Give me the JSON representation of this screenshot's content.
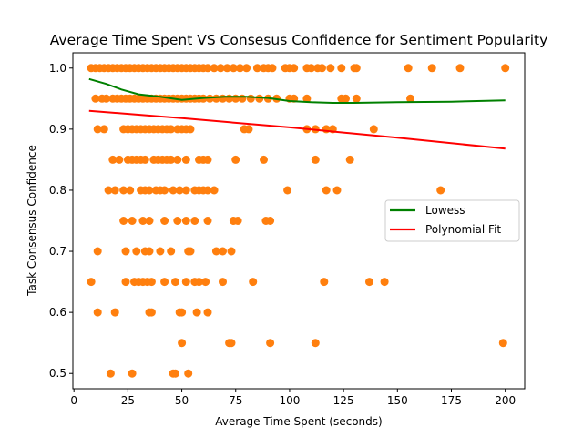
{
  "chart_data": {
    "type": "scatter",
    "title": "Average Time Spent VS Consesus Confidence for Sentiment Popularity",
    "xlabel": "Average Time Spent (seconds)",
    "ylabel": "Task Consensus Confidence",
    "xlim": [
      -0.5,
      209
    ],
    "ylim": [
      0.475,
      1.025
    ],
    "xticks": [
      0,
      25,
      50,
      75,
      100,
      125,
      150,
      175,
      200
    ],
    "yticks": [
      0.5,
      0.6,
      0.7,
      0.8,
      0.9,
      1.0
    ],
    "xtick_labels": [
      "0",
      "25",
      "50",
      "75",
      "100",
      "125",
      "150",
      "175",
      "200"
    ],
    "ytick_labels": [
      "0.5",
      "0.6",
      "0.7",
      "0.8",
      "0.9",
      "1.0"
    ],
    "grid": false,
    "legend_position": "center-right",
    "scatter_color": "#ff7f0e",
    "series": [
      {
        "kind": "scatter",
        "points": [
          [
            8,
            1.0
          ],
          [
            10,
            1.0
          ],
          [
            12,
            1.0
          ],
          [
            14,
            1.0
          ],
          [
            16,
            1.0
          ],
          [
            18,
            1.0
          ],
          [
            20,
            1.0
          ],
          [
            22,
            1.0
          ],
          [
            24,
            1.0
          ],
          [
            26,
            1.0
          ],
          [
            28,
            1.0
          ],
          [
            30,
            1.0
          ],
          [
            32,
            1.0
          ],
          [
            34,
            1.0
          ],
          [
            36,
            1.0
          ],
          [
            38,
            1.0
          ],
          [
            40,
            1.0
          ],
          [
            42,
            1.0
          ],
          [
            44,
            1.0
          ],
          [
            46,
            1.0
          ],
          [
            48,
            1.0
          ],
          [
            50,
            1.0
          ],
          [
            52,
            1.0
          ],
          [
            54,
            1.0
          ],
          [
            56,
            1.0
          ],
          [
            58,
            1.0
          ],
          [
            60,
            1.0
          ],
          [
            62,
            1.0
          ],
          [
            65,
            1.0
          ],
          [
            68,
            1.0
          ],
          [
            71,
            1.0
          ],
          [
            74,
            1.0
          ],
          [
            77,
            1.0
          ],
          [
            80,
            1.0
          ],
          [
            85,
            1.0
          ],
          [
            88,
            1.0
          ],
          [
            90,
            1.0
          ],
          [
            92,
            1.0
          ],
          [
            98,
            1.0
          ],
          [
            100,
            1.0
          ],
          [
            102,
            1.0
          ],
          [
            108,
            1.0
          ],
          [
            110,
            1.0
          ],
          [
            113,
            1.0
          ],
          [
            115,
            1.0
          ],
          [
            119,
            1.0
          ],
          [
            124,
            1.0
          ],
          [
            130,
            1.0
          ],
          [
            131,
            1.0
          ],
          [
            155,
            1.0
          ],
          [
            166,
            1.0
          ],
          [
            179,
            1.0
          ],
          [
            200,
            1.0
          ],
          [
            10,
            0.95
          ],
          [
            13,
            0.95
          ],
          [
            15,
            0.95
          ],
          [
            18,
            0.95
          ],
          [
            20,
            0.95
          ],
          [
            22,
            0.95
          ],
          [
            24,
            0.95
          ],
          [
            26,
            0.95
          ],
          [
            28,
            0.95
          ],
          [
            30,
            0.95
          ],
          [
            32,
            0.95
          ],
          [
            34,
            0.95
          ],
          [
            36,
            0.95
          ],
          [
            38,
            0.95
          ],
          [
            40,
            0.95
          ],
          [
            42,
            0.95
          ],
          [
            44,
            0.95
          ],
          [
            46,
            0.95
          ],
          [
            48,
            0.95
          ],
          [
            50,
            0.95
          ],
          [
            52,
            0.95
          ],
          [
            54,
            0.95
          ],
          [
            56,
            0.95
          ],
          [
            58,
            0.95
          ],
          [
            60,
            0.95
          ],
          [
            63,
            0.95
          ],
          [
            66,
            0.95
          ],
          [
            69,
            0.95
          ],
          [
            72,
            0.95
          ],
          [
            75,
            0.95
          ],
          [
            78,
            0.95
          ],
          [
            82,
            0.95
          ],
          [
            86,
            0.95
          ],
          [
            90,
            0.95
          ],
          [
            94,
            0.95
          ],
          [
            100,
            0.95
          ],
          [
            102,
            0.95
          ],
          [
            108,
            0.95
          ],
          [
            124,
            0.95
          ],
          [
            126,
            0.95
          ],
          [
            131,
            0.95
          ],
          [
            156,
            0.95
          ],
          [
            11,
            0.9
          ],
          [
            14,
            0.9
          ],
          [
            23,
            0.9
          ],
          [
            25,
            0.9
          ],
          [
            27,
            0.9
          ],
          [
            29,
            0.9
          ],
          [
            31,
            0.9
          ],
          [
            33,
            0.9
          ],
          [
            35,
            0.9
          ],
          [
            37,
            0.9
          ],
          [
            39,
            0.9
          ],
          [
            41,
            0.9
          ],
          [
            43,
            0.9
          ],
          [
            45,
            0.9
          ],
          [
            48,
            0.9
          ],
          [
            50,
            0.9
          ],
          [
            52,
            0.9
          ],
          [
            54,
            0.9
          ],
          [
            79,
            0.9
          ],
          [
            81,
            0.9
          ],
          [
            108,
            0.9
          ],
          [
            112,
            0.9
          ],
          [
            117,
            0.9
          ],
          [
            120,
            0.9
          ],
          [
            139,
            0.9
          ],
          [
            18,
            0.85
          ],
          [
            21,
            0.85
          ],
          [
            25,
            0.85
          ],
          [
            27,
            0.85
          ],
          [
            29,
            0.85
          ],
          [
            31,
            0.85
          ],
          [
            33,
            0.85
          ],
          [
            37,
            0.85
          ],
          [
            39,
            0.85
          ],
          [
            41,
            0.85
          ],
          [
            43,
            0.85
          ],
          [
            45,
            0.85
          ],
          [
            48,
            0.85
          ],
          [
            52,
            0.85
          ],
          [
            58,
            0.85
          ],
          [
            60,
            0.85
          ],
          [
            62,
            0.85
          ],
          [
            75,
            0.85
          ],
          [
            88,
            0.85
          ],
          [
            112,
            0.85
          ],
          [
            128,
            0.85
          ],
          [
            16,
            0.8
          ],
          [
            19,
            0.8
          ],
          [
            23,
            0.8
          ],
          [
            26,
            0.8
          ],
          [
            31,
            0.8
          ],
          [
            33,
            0.8
          ],
          [
            35,
            0.8
          ],
          [
            38,
            0.8
          ],
          [
            40,
            0.8
          ],
          [
            42,
            0.8
          ],
          [
            46,
            0.8
          ],
          [
            49,
            0.8
          ],
          [
            52,
            0.8
          ],
          [
            56,
            0.8
          ],
          [
            58,
            0.8
          ],
          [
            60,
            0.8
          ],
          [
            62,
            0.8
          ],
          [
            65,
            0.8
          ],
          [
            99,
            0.8
          ],
          [
            117,
            0.8
          ],
          [
            122,
            0.8
          ],
          [
            170,
            0.8
          ],
          [
            23,
            0.75
          ],
          [
            27,
            0.75
          ],
          [
            32,
            0.75
          ],
          [
            35,
            0.75
          ],
          [
            42,
            0.75
          ],
          [
            48,
            0.75
          ],
          [
            52,
            0.75
          ],
          [
            56,
            0.75
          ],
          [
            62,
            0.75
          ],
          [
            74,
            0.75
          ],
          [
            76,
            0.75
          ],
          [
            89,
            0.75
          ],
          [
            91,
            0.75
          ],
          [
            11,
            0.7
          ],
          [
            24,
            0.7
          ],
          [
            29,
            0.7
          ],
          [
            33,
            0.7
          ],
          [
            35,
            0.7
          ],
          [
            40,
            0.7
          ],
          [
            45,
            0.7
          ],
          [
            53,
            0.7
          ],
          [
            54,
            0.7
          ],
          [
            66,
            0.7
          ],
          [
            69,
            0.7
          ],
          [
            73,
            0.7
          ],
          [
            8,
            0.65
          ],
          [
            24,
            0.65
          ],
          [
            28,
            0.65
          ],
          [
            30,
            0.65
          ],
          [
            32,
            0.65
          ],
          [
            34,
            0.65
          ],
          [
            36,
            0.65
          ],
          [
            42,
            0.65
          ],
          [
            47,
            0.65
          ],
          [
            52,
            0.65
          ],
          [
            56,
            0.65
          ],
          [
            58,
            0.65
          ],
          [
            61,
            0.65
          ],
          [
            69,
            0.65
          ],
          [
            83,
            0.65
          ],
          [
            116,
            0.65
          ],
          [
            137,
            0.65
          ],
          [
            144,
            0.65
          ],
          [
            11,
            0.6
          ],
          [
            19,
            0.6
          ],
          [
            35,
            0.6
          ],
          [
            36,
            0.6
          ],
          [
            49,
            0.6
          ],
          [
            50,
            0.6
          ],
          [
            57,
            0.6
          ],
          [
            62,
            0.6
          ],
          [
            50,
            0.55
          ],
          [
            72,
            0.55
          ],
          [
            73,
            0.55
          ],
          [
            91,
            0.55
          ],
          [
            112,
            0.55
          ],
          [
            199,
            0.55
          ],
          [
            17,
            0.5
          ],
          [
            27,
            0.5
          ],
          [
            46,
            0.5
          ],
          [
            47,
            0.5
          ],
          [
            53,
            0.5
          ]
        ]
      },
      {
        "name": "Lowess",
        "kind": "line",
        "color": "#008000",
        "points": [
          [
            7,
            0.982
          ],
          [
            15,
            0.974
          ],
          [
            22,
            0.965
          ],
          [
            30,
            0.957
          ],
          [
            40,
            0.953
          ],
          [
            50,
            0.948
          ],
          [
            60,
            0.951
          ],
          [
            70,
            0.953
          ],
          [
            80,
            0.953
          ],
          [
            90,
            0.951
          ],
          [
            100,
            0.946
          ],
          [
            110,
            0.944
          ],
          [
            120,
            0.943
          ],
          [
            130,
            0.943
          ],
          [
            150,
            0.944
          ],
          [
            175,
            0.945
          ],
          [
            200,
            0.947
          ]
        ]
      },
      {
        "name": "Polynomial Fit",
        "kind": "line",
        "color": "#ff0000",
        "points": [
          [
            7,
            0.93
          ],
          [
            50,
            0.918
          ],
          [
            100,
            0.903
          ],
          [
            150,
            0.886
          ],
          [
            200,
            0.868
          ]
        ]
      }
    ]
  }
}
